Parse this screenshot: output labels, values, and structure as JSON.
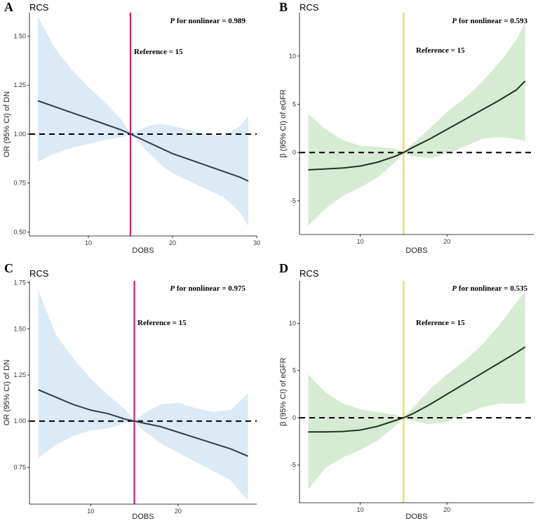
{
  "chart_data": [
    {
      "panel": "A",
      "type": "line",
      "title": "RCS",
      "xlabel": "DOBS",
      "ylabel": "OR (95% CI) of DN",
      "xlim": [
        3,
        30
      ],
      "ylim": [
        0.48,
        1.62
      ],
      "xticks": [
        10,
        20,
        30
      ],
      "yticks": [
        0.5,
        0.75,
        1.0,
        1.25,
        1.5
      ],
      "ytick_labels": [
        "0.50",
        "0.75",
        "1.00",
        "1.25",
        "1.50"
      ],
      "reference_value": 1.0,
      "reference_x": 15,
      "reference_color": "#cc1f7a",
      "band_color": "#dbeaf5",
      "line_color": "#2f3e46",
      "annotation_p_italic": "P",
      "annotation_p_rest": " for nonlinear = 0.989",
      "annotation_reference": "Reference = 15",
      "x": [
        4,
        6,
        8,
        10,
        12,
        14,
        15,
        16,
        17,
        18,
        19,
        20,
        22,
        24,
        26,
        28,
        29
      ],
      "y": [
        1.17,
        1.14,
        1.11,
        1.08,
        1.05,
        1.02,
        1.0,
        0.98,
        0.96,
        0.94,
        0.92,
        0.9,
        0.87,
        0.84,
        0.81,
        0.78,
        0.76
      ],
      "lower": [
        0.86,
        0.9,
        0.93,
        0.95,
        0.97,
        0.985,
        1.0,
        0.96,
        0.91,
        0.87,
        0.83,
        0.8,
        0.76,
        0.72,
        0.68,
        0.6,
        0.53
      ],
      "upper": [
        1.6,
        1.44,
        1.33,
        1.24,
        1.16,
        1.07,
        1.0,
        1.02,
        1.04,
        1.05,
        1.05,
        1.04,
        1.02,
        1.0,
        0.99,
        1.04,
        1.09
      ]
    },
    {
      "panel": "B",
      "type": "line",
      "title": "RCS",
      "xlabel": "DOBS",
      "ylabel": "β (95% CI) of eGFR",
      "xlim": [
        3,
        30
      ],
      "ylim": [
        -8.5,
        14.5
      ],
      "xticks": [
        10,
        20
      ],
      "yticks": [
        -5,
        0,
        5,
        10
      ],
      "ytick_labels": [
        "-5",
        "0",
        "5",
        "10"
      ],
      "reference_value": 0,
      "reference_x": 15,
      "reference_color": "#f0d84a",
      "band_color": "#d6ecd2",
      "line_color": "#1f3322",
      "annotation_p_italic": "P",
      "annotation_p_rest": " for nonlinear = 0.593",
      "annotation_reference": "Reference = 15",
      "x": [
        4,
        6,
        8,
        10,
        12,
        14,
        15,
        16,
        18,
        20,
        22,
        24,
        26,
        28,
        29
      ],
      "y": [
        -1.8,
        -1.7,
        -1.6,
        -1.4,
        -1.0,
        -0.4,
        0.0,
        0.5,
        1.4,
        2.4,
        3.4,
        4.4,
        5.4,
        6.5,
        7.4
      ],
      "lower": [
        -7.6,
        -5.8,
        -4.5,
        -3.6,
        -2.6,
        -1.0,
        0.0,
        -0.4,
        -0.6,
        -0.1,
        0.6,
        1.4,
        1.6,
        1.4,
        1.2
      ],
      "upper": [
        4.0,
        2.4,
        1.3,
        0.7,
        0.6,
        0.4,
        0.0,
        0.9,
        2.5,
        4.2,
        5.6,
        7.3,
        9.3,
        11.7,
        13.5
      ]
    },
    {
      "panel": "C",
      "type": "line",
      "title": "RCS",
      "xlabel": "DOBS",
      "ylabel": "OR (95% CI) of DN",
      "xlim": [
        3,
        29
      ],
      "ylim": [
        0.55,
        1.76
      ],
      "xticks": [
        10,
        20
      ],
      "yticks": [
        0.75,
        1.0,
        1.25,
        1.5,
        1.75
      ],
      "ytick_labels": [
        "0.75",
        "1.00",
        "1.25",
        "1.50",
        "1.75"
      ],
      "reference_value": 1.0,
      "reference_x": 15,
      "reference_color": "#cc1f7a",
      "band_color": "#dbeaf5",
      "line_color": "#2f3e46",
      "annotation_p_italic": "P",
      "annotation_p_rest": " for nonlinear = 0.975",
      "annotation_reference": "Reference = 15",
      "x": [
        4,
        6,
        8,
        10,
        12,
        14,
        15,
        16,
        18,
        20,
        22,
        24,
        26,
        28
      ],
      "y": [
        1.17,
        1.13,
        1.09,
        1.06,
        1.04,
        1.01,
        1.0,
        0.99,
        0.97,
        0.94,
        0.91,
        0.88,
        0.85,
        0.81
      ],
      "lower": [
        0.8,
        0.87,
        0.92,
        0.95,
        0.96,
        0.99,
        1.0,
        0.95,
        0.88,
        0.83,
        0.78,
        0.73,
        0.68,
        0.57
      ],
      "upper": [
        1.71,
        1.47,
        1.34,
        1.23,
        1.14,
        1.06,
        1.0,
        1.04,
        1.09,
        1.1,
        1.07,
        1.05,
        1.06,
        1.15
      ]
    },
    {
      "panel": "D",
      "type": "line",
      "title": "RCS",
      "xlabel": "DOBS",
      "ylabel": "β (95% CI) of eGFR",
      "xlim": [
        3,
        30
      ],
      "ylim": [
        -9,
        14.5
      ],
      "xticks": [
        10,
        20
      ],
      "yticks": [
        -5,
        0,
        5,
        10
      ],
      "ytick_labels": [
        "-5",
        "0",
        "5",
        "10"
      ],
      "reference_value": 0,
      "reference_x": 15,
      "reference_color": "#f0d84a",
      "band_color": "#d6ecd2",
      "line_color": "#1f3322",
      "annotation_p_italic": "P",
      "annotation_p_rest": " for nonlinear = 0.535",
      "annotation_reference": "Reference = 15",
      "x": [
        4,
        6,
        8,
        10,
        12,
        14,
        15,
        16,
        18,
        20,
        22,
        24,
        26,
        28,
        29
      ],
      "y": [
        -1.5,
        -1.5,
        -1.45,
        -1.3,
        -0.9,
        -0.3,
        0.0,
        0.4,
        1.4,
        2.5,
        3.6,
        4.7,
        5.8,
        6.9,
        7.5
      ],
      "lower": [
        -7.6,
        -5.3,
        -4.2,
        -3.4,
        -2.4,
        -0.9,
        0.0,
        -0.3,
        -0.7,
        -0.4,
        0.4,
        1.1,
        1.5,
        1.5,
        1.5
      ],
      "upper": [
        4.6,
        2.7,
        1.5,
        0.9,
        0.6,
        0.3,
        0.0,
        1.0,
        3.0,
        4.6,
        6.0,
        7.7,
        9.8,
        12.2,
        13.4
      ]
    }
  ]
}
